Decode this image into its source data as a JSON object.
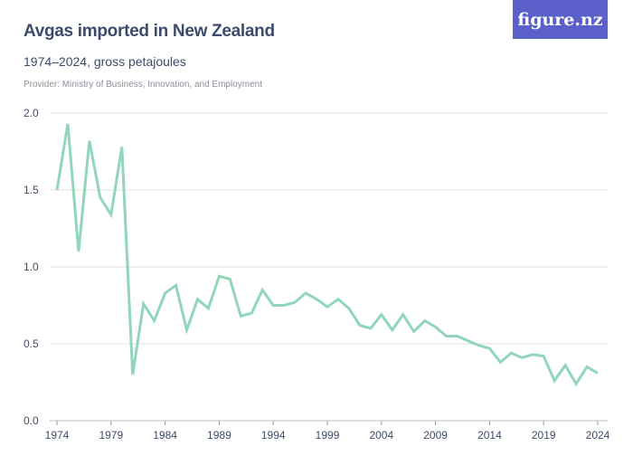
{
  "header": {
    "title": "Avgas imported in New Zealand",
    "subtitle": "1974–2024, gross petajoules",
    "provider": "Provider: Ministry of Business, Innovation, and Employment",
    "logo": "figure.nz"
  },
  "colors": {
    "line": "#92d6b9",
    "title": "#3d4b6b",
    "logo_bg": "#5a5fc9",
    "grid": "#e0e0e0"
  },
  "chart_data": {
    "type": "line",
    "title": "Avgas imported in New Zealand",
    "subtitle": "1974–2024, gross petajoules",
    "xlabel": "",
    "ylabel": "",
    "xlim": [
      1974,
      2024
    ],
    "ylim": [
      0,
      2.0
    ],
    "grid": true,
    "y_ticks": [
      "0.0",
      "0.5",
      "1.0",
      "1.5",
      "2.0"
    ],
    "x_ticks": [
      "1974",
      "1979",
      "1984",
      "1989",
      "1994",
      "1999",
      "2004",
      "2009",
      "2014",
      "2019",
      "2024"
    ],
    "x": [
      1974,
      1975,
      1976,
      1977,
      1978,
      1979,
      1980,
      1981,
      1982,
      1983,
      1984,
      1985,
      1986,
      1987,
      1988,
      1989,
      1990,
      1991,
      1992,
      1993,
      1994,
      1995,
      1996,
      1997,
      1998,
      1999,
      2000,
      2001,
      2002,
      2003,
      2004,
      2005,
      2006,
      2007,
      2008,
      2009,
      2010,
      2011,
      2012,
      2013,
      2014,
      2015,
      2016,
      2017,
      2018,
      2019,
      2020,
      2021,
      2022,
      2023,
      2024
    ],
    "series": [
      {
        "values": [
          1.5,
          1.93,
          1.1,
          1.82,
          1.45,
          1.34,
          1.78,
          0.3,
          0.76,
          0.65,
          0.83,
          0.88,
          0.59,
          0.79,
          0.73,
          0.94,
          0.92,
          0.68,
          0.7,
          0.85,
          0.75,
          0.75,
          0.77,
          0.83,
          0.79,
          0.74,
          0.79,
          0.73,
          0.62,
          0.6,
          0.69,
          0.59,
          0.69,
          0.58,
          0.65,
          0.61,
          0.55,
          0.55,
          0.52,
          0.49,
          0.47,
          0.38,
          0.44,
          0.41,
          0.43,
          0.42,
          0.26,
          0.36,
          0.24,
          0.35,
          0.31
        ]
      }
    ]
  }
}
